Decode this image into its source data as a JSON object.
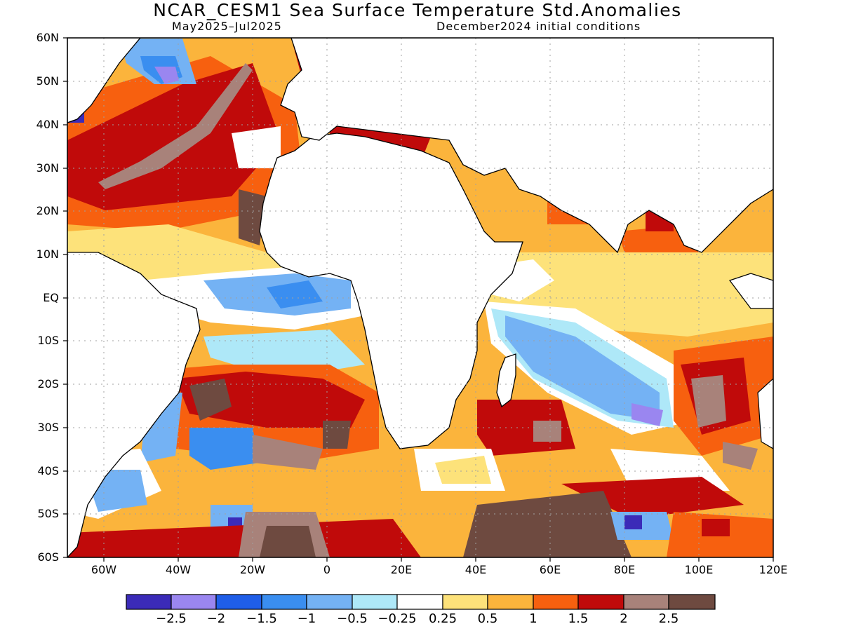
{
  "title": "NCAR_CESM1 Sea Surface Temperature Std.Anomalies",
  "subtitle_left": "May2025–Jul2025",
  "subtitle_right": "December2024 initial conditions",
  "lat_labels": [
    "60N",
    "50N",
    "40N",
    "30N",
    "20N",
    "10N",
    "EQ",
    "10S",
    "20S",
    "30S",
    "40S",
    "50S",
    "60S"
  ],
  "lon_labels": [
    "60W",
    "40W",
    "20W",
    "0",
    "20E",
    "40E",
    "60E",
    "80E",
    "100E",
    "120E"
  ],
  "colorbar": {
    "colors": [
      "#3b2bb8",
      "#9a86f0",
      "#1f5ee8",
      "#3a8ef0",
      "#74b2f4",
      "#aee8f8",
      "#ffffff",
      "#fde27a",
      "#fbb43c",
      "#f7600f",
      "#c00a0a",
      "#a8827a",
      "#6e4a40"
    ],
    "labels": [
      "−2.5",
      "−2",
      "−1.5",
      "−1",
      "−0.5",
      "−0.25",
      "0.25",
      "0.5",
      "1",
      "1.5",
      "2",
      "2.5"
    ]
  }
}
